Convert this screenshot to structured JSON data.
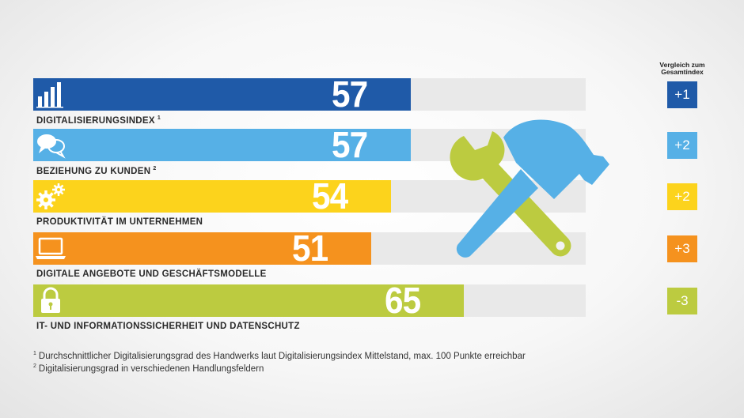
{
  "comparison_header": [
    "Vergleich zum",
    "Gesamtindex"
  ],
  "rows": [
    {
      "label": "DIGITALISIERUNGSINDEX",
      "footnote_ref": "1",
      "value": 57,
      "comparison": "+1",
      "color": "#1f5aa8",
      "icon": "bar-chart-icon"
    },
    {
      "label": "BEZIEHUNG ZU KUNDEN",
      "footnote_ref": "2",
      "value": 57,
      "comparison": "+2",
      "color": "#56b0e6",
      "icon": "speech-bubbles-icon"
    },
    {
      "label": "PRODUKTIVITÄT IM UNTERNEHMEN",
      "footnote_ref": "",
      "value": 54,
      "comparison": "+2",
      "color": "#fcd31c",
      "icon": "gears-icon"
    },
    {
      "label": "DIGITALE ANGEBOTE UND GESCHÄFTSMODELLE",
      "footnote_ref": "",
      "value": 51,
      "comparison": "+3",
      "color": "#f5921e",
      "icon": "laptop-icon"
    },
    {
      "label": "IT- UND INFORMATIONSSICHERHEIT UND DATENSCHUTZ",
      "footnote_ref": "",
      "value": 65,
      "comparison": "-3",
      "color": "#bccb40",
      "icon": "padlock-icon"
    }
  ],
  "footnotes": [
    {
      "ref": "1",
      "text": "Durchschnittlicher Digitalisierungsgrad des Handwerks laut Digitalisierungsindex Mittelstand, max. 100 Punkte erreichbar"
    },
    {
      "ref": "2",
      "text": "Digitalisierungsgrad in verschiedenen Handlungsfeldern"
    }
  ],
  "illustration": {
    "icons": [
      "wrench-icon",
      "hammer-icon"
    ],
    "wrench_color": "#bccb40",
    "hammer_color": "#56b0e6"
  },
  "chart_data": {
    "type": "bar",
    "orientation": "horizontal",
    "categories": [
      "DIGITALISIERUNGSINDEX",
      "BEZIEHUNG ZU KUNDEN",
      "PRODUKTIVITÄT IM UNTERNEHMEN",
      "DIGITALE ANGEBOTE UND GESCHÄFTSMODELLE",
      "IT- UND INFORMATIONSSICHERHEIT UND DATENSCHUTZ"
    ],
    "values": [
      57,
      57,
      54,
      51,
      65
    ],
    "comparison_to_overall_index": [
      "+1",
      "+2",
      "+2",
      "+3",
      "-3"
    ],
    "xlim": [
      0,
      100
    ],
    "grid": false,
    "legend": "none"
  }
}
